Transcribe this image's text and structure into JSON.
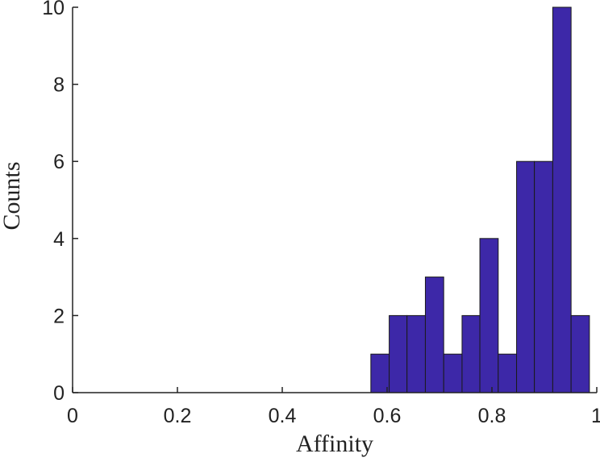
{
  "chart_data": {
    "type": "histogram",
    "x_label": "Affinity",
    "y_label": "Counts",
    "bins": [
      0.569,
      0.604,
      0.638,
      0.673,
      0.708,
      0.743,
      0.777,
      0.812,
      0.847,
      0.881,
      0.916,
      0.951,
      0.986
    ],
    "values": [
      1,
      2,
      2,
      3,
      1,
      2,
      4,
      1,
      6,
      6,
      10,
      2
    ],
    "color": "#3d28a8",
    "xlim": [
      0,
      1
    ],
    "xticks": [
      0,
      0.2,
      0.4,
      0.6,
      0.8,
      1
    ],
    "ylim": [
      0,
      10
    ],
    "yticks": [
      0,
      2,
      4,
      6,
      8,
      10
    ]
  }
}
